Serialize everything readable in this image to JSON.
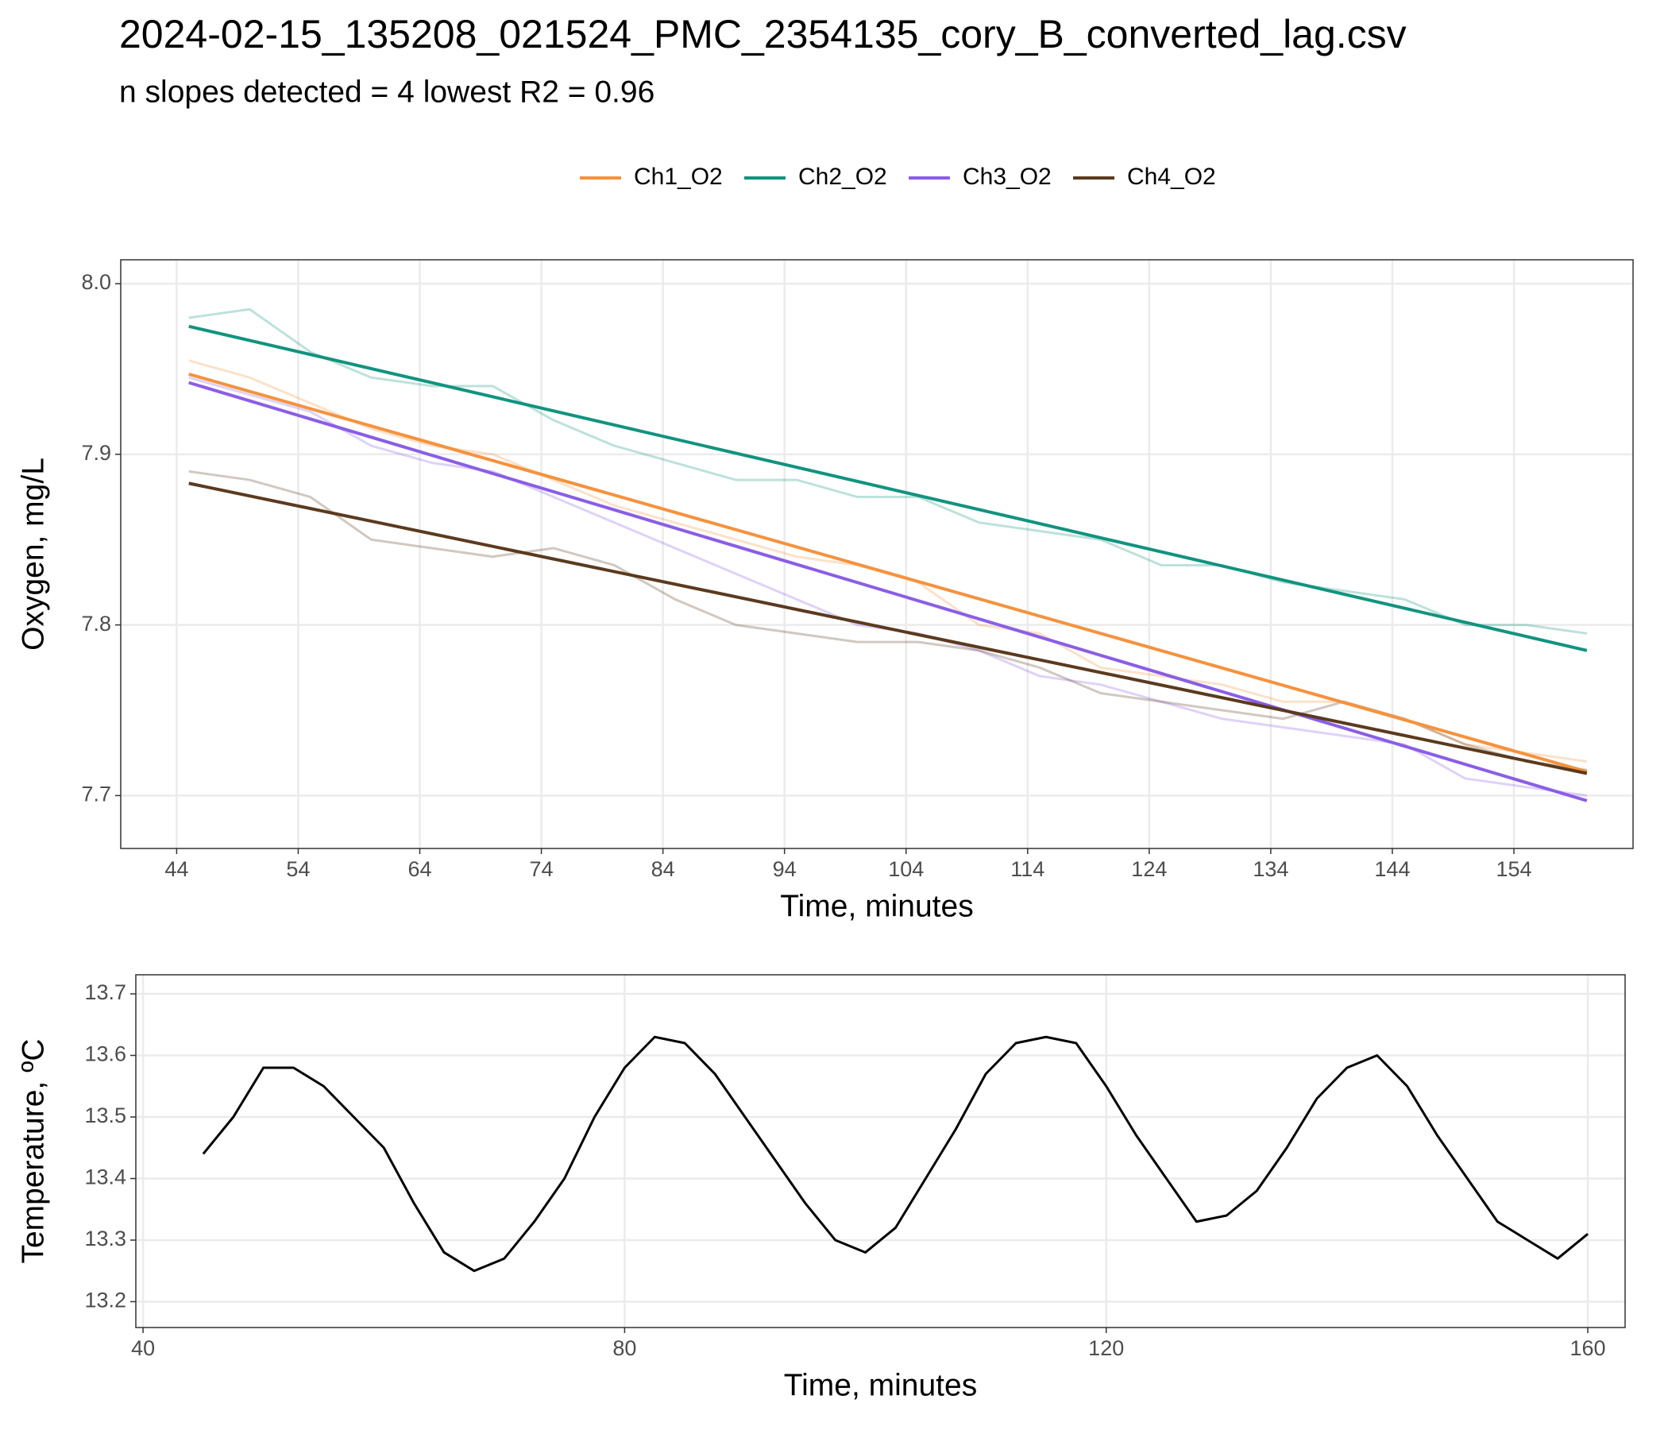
{
  "chart_data": [
    {
      "type": "line",
      "title": "2024-02-15_135208_021524_PMC_2354135_cory_B_converted_lag.csv",
      "subtitle": "n slopes detected = 4  lowest R2 = 0.96",
      "x_label": "Time, minutes",
      "y_label": "Oxygen, mg/L",
      "x": [
        45,
        50,
        55,
        60,
        65,
        70,
        75,
        80,
        85,
        90,
        95,
        100,
        105,
        110,
        115,
        120,
        125,
        130,
        135,
        140,
        145,
        150,
        155,
        160
      ],
      "xlim": [
        39.4,
        163.8
      ],
      "ylim": [
        7.669,
        8.014
      ],
      "xticks": [
        44,
        54,
        64,
        74,
        84,
        94,
        104,
        114,
        124,
        134,
        144,
        154
      ],
      "yticks": [
        {
          "value": 7.7,
          "label": "7.7"
        },
        {
          "value": 7.8,
          "label": "7.8"
        },
        {
          "value": 7.9,
          "label": "7.9"
        },
        {
          "value": 8.0,
          "label": "8.0"
        }
      ],
      "grid": true,
      "legend": "top",
      "fit_x": [
        45,
        160
      ],
      "series": [
        {
          "name": "Ch1_O2",
          "color": "#f5923e",
          "values": [
            7.955,
            7.945,
            7.93,
            7.915,
            7.905,
            7.9,
            7.885,
            7.87,
            7.86,
            7.85,
            7.84,
            7.835,
            7.825,
            7.8,
            7.795,
            7.775,
            7.77,
            7.765,
            7.755,
            7.755,
            7.745,
            7.73,
            7.725,
            7.72
          ],
          "fit": [
            7.947,
            7.714
          ]
        },
        {
          "name": "Ch2_O2",
          "color": "#12937f",
          "values": [
            7.98,
            7.985,
            7.96,
            7.945,
            7.94,
            7.94,
            7.92,
            7.905,
            7.895,
            7.885,
            7.885,
            7.875,
            7.875,
            7.86,
            7.855,
            7.85,
            7.835,
            7.835,
            7.825,
            7.82,
            7.815,
            7.8,
            7.8,
            7.795
          ],
          "fit": [
            7.975,
            7.785
          ]
        },
        {
          "name": "Ch3_O2",
          "color": "#8a5ee6",
          "values": [
            7.945,
            7.935,
            7.925,
            7.905,
            7.895,
            7.89,
            7.875,
            7.86,
            7.845,
            7.83,
            7.815,
            7.8,
            7.795,
            7.785,
            7.77,
            7.765,
            7.755,
            7.745,
            7.74,
            7.735,
            7.73,
            7.71,
            7.705,
            7.7
          ],
          "fit": [
            7.942,
            7.697
          ]
        },
        {
          "name": "Ch4_O2",
          "color": "#5b3a1e",
          "values": [
            7.89,
            7.885,
            7.875,
            7.85,
            7.845,
            7.84,
            7.845,
            7.835,
            7.815,
            7.8,
            7.795,
            7.79,
            7.79,
            7.785,
            7.775,
            7.76,
            7.755,
            7.75,
            7.745,
            7.755,
            7.745,
            7.73,
            7.72,
            7.715
          ],
          "fit": [
            7.883,
            7.713
          ]
        }
      ]
    },
    {
      "type": "line",
      "x_label": "Time, minutes",
      "y_label": "Temperature, ºC",
      "x": [
        45,
        47.5,
        50,
        52.5,
        55,
        57.5,
        60,
        62.5,
        65,
        67.5,
        70,
        72.5,
        75,
        77.5,
        80,
        82.5,
        85,
        87.5,
        90,
        92.5,
        95,
        97.5,
        100,
        102.5,
        105,
        107.5,
        110,
        112.5,
        115,
        117.5,
        120,
        122.5,
        125,
        127.5,
        130,
        132.5,
        135,
        137.5,
        140,
        142.5,
        145,
        147.5,
        150,
        152.5,
        155,
        157.5,
        160
      ],
      "values": [
        13.44,
        13.5,
        13.58,
        13.58,
        13.55,
        13.5,
        13.45,
        13.36,
        13.28,
        13.25,
        13.27,
        13.33,
        13.4,
        13.5,
        13.58,
        13.63,
        13.62,
        13.57,
        13.5,
        13.43,
        13.36,
        13.3,
        13.28,
        13.32,
        13.4,
        13.48,
        13.57,
        13.62,
        13.63,
        13.62,
        13.55,
        13.47,
        13.4,
        13.33,
        13.34,
        13.38,
        13.45,
        13.53,
        13.58,
        13.6,
        13.55,
        13.47,
        13.4,
        13.33,
        13.3,
        13.27,
        13.31
      ],
      "color": "#000000",
      "xlim": [
        39.4,
        163.1
      ],
      "ylim": [
        13.158,
        13.731
      ],
      "xticks": [
        40,
        80,
        120,
        160
      ],
      "yticks": [
        13.2,
        13.3,
        13.4,
        13.5,
        13.6,
        13.7
      ],
      "grid": true
    }
  ]
}
